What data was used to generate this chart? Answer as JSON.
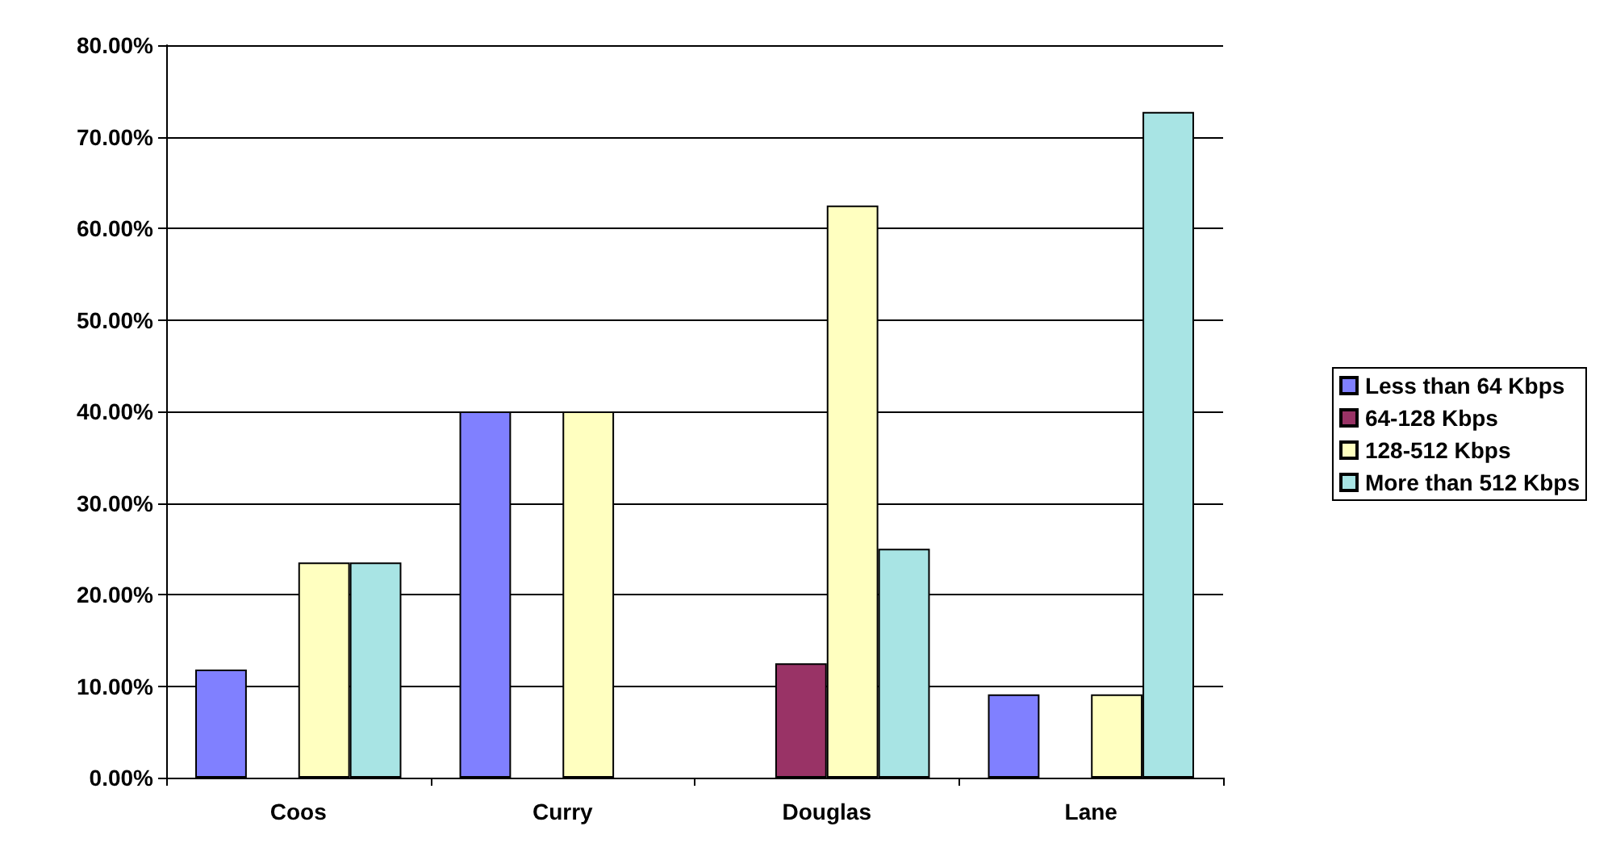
{
  "chart_data": {
    "type": "bar",
    "categories": [
      "Coos",
      "Curry",
      "Douglas",
      "Lane"
    ],
    "series": [
      {
        "name": "Less than 64 Kbps",
        "color": "#8080ff",
        "values": [
          11.8,
          40,
          null,
          9.1
        ]
      },
      {
        "name": "64-128 Kbps",
        "color": "#993366",
        "values": [
          null,
          null,
          12.5,
          null
        ]
      },
      {
        "name": "128-512 Kbps",
        "color": "#ffffc0",
        "values": [
          23.5,
          40,
          62.5,
          9.1
        ]
      },
      {
        "name": "More than 512 Kbps",
        "color": "#a8e4e4",
        "values": [
          23.5,
          null,
          25,
          72.7
        ]
      }
    ],
    "ylim": [
      0,
      80
    ],
    "yticks": [
      {
        "value": 0,
        "label": "0.00%"
      },
      {
        "value": 10,
        "label": "10.00%"
      },
      {
        "value": 20,
        "label": "20.00%"
      },
      {
        "value": 30,
        "label": "30.00%"
      },
      {
        "value": 40,
        "label": "40.00%"
      },
      {
        "value": 50,
        "label": "50.00%"
      },
      {
        "value": 60,
        "label": "60.00%"
      },
      {
        "value": 70,
        "label": "70.00%"
      },
      {
        "value": 80,
        "label": "80.00%"
      }
    ],
    "grid": "y",
    "legend": "right"
  }
}
